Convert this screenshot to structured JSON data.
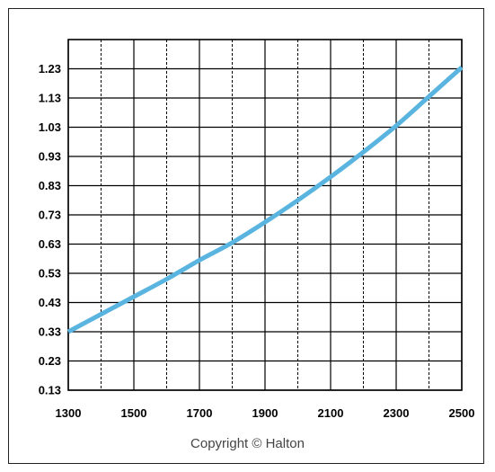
{
  "chart_data": {
    "type": "line",
    "title": "",
    "xlabel": "",
    "ylabel": "",
    "xlim": [
      1300,
      2500
    ],
    "ylim": [
      0.13,
      1.33
    ],
    "x_ticks": [
      1300,
      1500,
      1700,
      1900,
      2100,
      2300,
      2500
    ],
    "y_ticks": [
      0.13,
      0.23,
      0.33,
      0.43,
      0.53,
      0.63,
      0.73,
      0.83,
      0.93,
      1.03,
      1.13,
      1.23
    ],
    "y_tick_labels": [
      "0.13",
      "0.23",
      "0.33",
      "0.43",
      "0.53",
      "0.63",
      "0.73",
      "0.83",
      "0.93",
      "1.03",
      "1.13",
      "1.23"
    ],
    "grid": true,
    "x_grid_minor_dashed": [
      1400,
      1600,
      1800,
      2000,
      2200,
      2400
    ],
    "series": [
      {
        "color": "#5ab4e0",
        "x": [
          1300,
          1400,
          1500,
          1600,
          1700,
          1800,
          1900,
          2000,
          2100,
          2200,
          2300,
          2400,
          2500
        ],
        "y": [
          0.33,
          0.39,
          0.45,
          0.51,
          0.575,
          0.635,
          0.705,
          0.78,
          0.86,
          0.945,
          1.035,
          1.135,
          1.235
        ]
      }
    ]
  },
  "footer": {
    "copyright": "Copyright © Halton"
  }
}
